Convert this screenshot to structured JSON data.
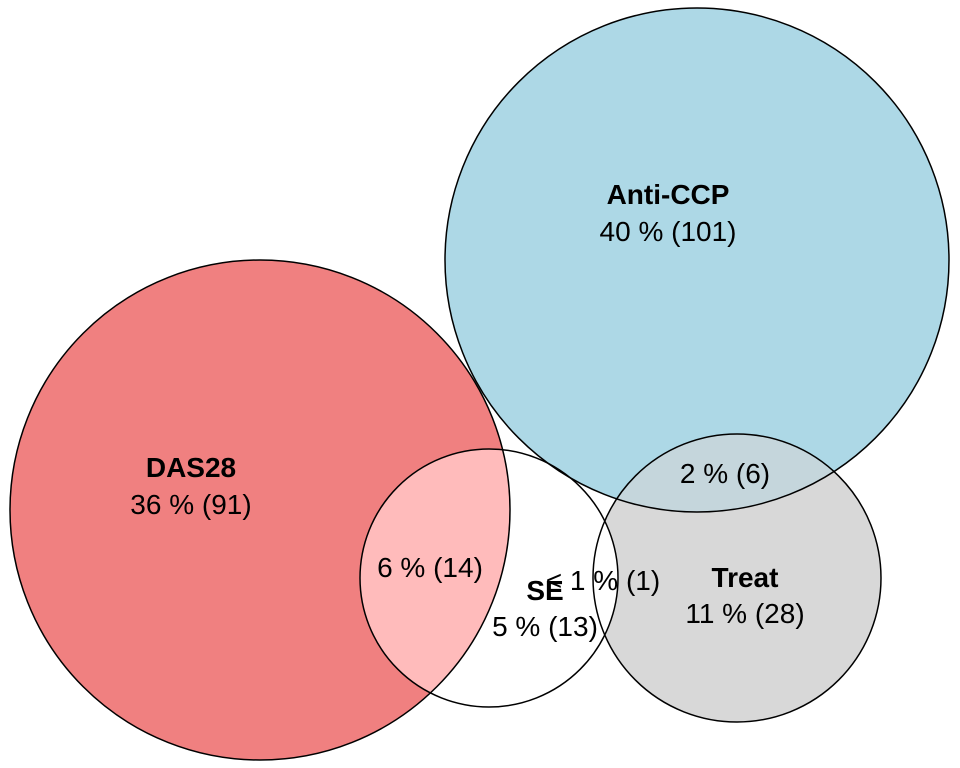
{
  "colors": {
    "das28": "#f08080",
    "anti_ccp": "#add8e6",
    "treat": "#d8d8d8",
    "se": "#ffffff",
    "das28_se_overlap": "#ffbbbb",
    "anti_ccp_treat_overlap": "#c5d6dc",
    "stroke": "#000000"
  },
  "sets": {
    "das28": {
      "name": "DAS28",
      "value": "36 % (91)"
    },
    "anti_ccp": {
      "name": "Anti-CCP",
      "value": "40 % (101)"
    },
    "treat": {
      "name": "Treat",
      "value": "11 % (28)"
    },
    "se": {
      "name": "SE",
      "value": "5 % (13)"
    }
  },
  "overlaps": {
    "das28_se": "6 % (14)",
    "anti_ccp_treat": "2 % (6)",
    "se_treat": "< 1 % (1)"
  }
}
